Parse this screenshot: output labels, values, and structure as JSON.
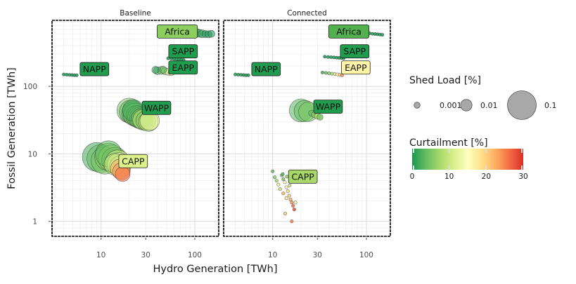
{
  "chart_data": {
    "type": "scatter",
    "x_label": "Hydro Generation [TWh]",
    "y_label": "Fossil Generation [TWh]",
    "x_scale": "log",
    "y_scale": "log",
    "xlim": [
      3,
      180
    ],
    "ylim": [
      0.6,
      950
    ],
    "x_ticks": [
      10,
      30,
      100
    ],
    "y_ticks": [
      1,
      10,
      100
    ],
    "grid": true,
    "size_legend": {
      "title": "Shed Load [%]",
      "entries": [
        {
          "label": "0.001",
          "value": 0.001
        },
        {
          "label": "0.01",
          "value": 0.01
        },
        {
          "label": "0.1",
          "value": 0.1
        }
      ]
    },
    "color_legend": {
      "title": "Curtailment [%]",
      "range": [
        0,
        30
      ],
      "ticks": [
        0,
        10,
        20,
        30
      ],
      "colormap": [
        "#1a9850",
        "#66bd63",
        "#a6d96a",
        "#d9ef8b",
        "#ffffbf",
        "#fee08b",
        "#fdae61",
        "#f46d43",
        "#d73027"
      ]
    },
    "panels": [
      {
        "title": "Baseline",
        "groups": [
          {
            "name": "Africa",
            "label_x": 65,
            "label_y": 650,
            "label_color": "#8ccf5f",
            "points": [
              [
                105,
                620,
                0.004,
                1
              ],
              [
                112,
                610,
                0.003,
                1
              ],
              [
                120,
                600,
                0.003,
                1
              ],
              [
                130,
                595,
                0.002,
                0
              ],
              [
                140,
                590,
                0.002,
                0
              ],
              [
                150,
                600,
                0.002,
                0
              ],
              [
                100,
                640,
                0.001,
                0
              ]
            ]
          },
          {
            "name": "SAPP",
            "label_x": 75,
            "label_y": 330,
            "label_color": "#1f9c4d",
            "points": [
              [
                52,
                260,
                0,
                0
              ],
              [
                56,
                258,
                0,
                0
              ],
              [
                60,
                255,
                0,
                0
              ],
              [
                64,
                252,
                0,
                0
              ],
              [
                68,
                250,
                0,
                0
              ],
              [
                72,
                248,
                0,
                0
              ],
              [
                76,
                245,
                0,
                0
              ]
            ]
          },
          {
            "name": "EAPP",
            "label_x": 75,
            "label_y": 190,
            "label_color": "#1f9c4d",
            "points": [
              [
                40,
                170,
                0.003,
                2
              ],
              [
                44,
                172,
                0.003,
                4
              ],
              [
                48,
                168,
                0.002,
                8
              ],
              [
                52,
                165,
                0.002,
                12
              ],
              [
                56,
                160,
                0.001,
                16
              ],
              [
                60,
                158,
                0,
                20
              ],
              [
                38,
                175,
                0.002,
                1
              ],
              [
                46,
                176,
                0.002,
                3
              ]
            ]
          },
          {
            "name": "NAPP",
            "label_x": 8.5,
            "label_y": 180,
            "label_color": "#1f9c4d",
            "points": [
              [
                4.0,
                150,
                0,
                0
              ],
              [
                4.3,
                149,
                0,
                0
              ],
              [
                4.6,
                148,
                0,
                0
              ],
              [
                4.9,
                147,
                0,
                0
              ],
              [
                5.2,
                146,
                0,
                0
              ],
              [
                5.5,
                146,
                0,
                0
              ]
            ]
          },
          {
            "name": "WAPP",
            "label_x": 39,
            "label_y": 48,
            "label_color": "#1f9c4d",
            "points": [
              [
                20,
                44,
                0.07,
                5
              ],
              [
                21,
                42,
                0.065,
                4
              ],
              [
                22,
                40,
                0.06,
                3
              ],
              [
                23,
                38,
                0.06,
                4
              ],
              [
                24,
                36,
                0.05,
                5
              ],
              [
                25,
                35,
                0.05,
                6
              ],
              [
                26,
                34,
                0.05,
                3
              ],
              [
                27,
                33,
                0.045,
                5
              ],
              [
                28,
                32,
                0.045,
                8
              ],
              [
                30,
                31,
                0.04,
                6
              ],
              [
                32,
                30,
                0.04,
                10
              ],
              [
                33,
                31,
                0.04,
                12
              ],
              [
                22,
                44,
                0.05,
                2
              ]
            ]
          },
          {
            "name": "CAPP",
            "label_x": 22,
            "label_y": 7.8,
            "label_color": "#ddf08a",
            "points": [
              [
                9,
                9,
                0.1,
                2
              ],
              [
                10,
                8.5,
                0.095,
                4
              ],
              [
                11,
                8,
                0.09,
                5
              ],
              [
                12,
                9,
                0.09,
                6
              ],
              [
                13,
                8.6,
                0.085,
                8
              ],
              [
                14,
                8,
                0.08,
                6
              ],
              [
                15,
                7.5,
                0.07,
                10
              ],
              [
                15.5,
                7,
                0.06,
                14
              ],
              [
                16,
                6.5,
                0.05,
                18
              ],
              [
                16,
                6,
                0.04,
                22
              ],
              [
                16.5,
                5.5,
                0.03,
                24
              ],
              [
                17,
                5,
                0.02,
                26
              ],
              [
                14,
                7,
                0.05,
                9
              ],
              [
                12,
                10,
                0.08,
                3
              ]
            ]
          }
        ]
      },
      {
        "title": "Connected",
        "groups": [
          {
            "name": "Africa",
            "label_x": 65,
            "label_y": 650,
            "label_color": "#52b04f",
            "points": [
              [
                100,
                620,
                0,
                0
              ],
              [
                108,
                610,
                0,
                0
              ],
              [
                116,
                600,
                0,
                0
              ],
              [
                124,
                595,
                0,
                0
              ],
              [
                132,
                590,
                0,
                0
              ],
              [
                140,
                585,
                0,
                0
              ],
              [
                148,
                580,
                0,
                0
              ]
            ]
          },
          {
            "name": "SAPP",
            "label_x": 75,
            "label_y": 330,
            "label_color": "#1f9c4d",
            "points": [
              [
                36,
                275,
                0,
                0
              ],
              [
                39,
                272,
                0,
                0
              ],
              [
                42,
                270,
                0,
                0
              ],
              [
                45,
                268,
                0,
                0
              ],
              [
                48,
                266,
                0,
                0
              ],
              [
                51,
                264,
                0,
                0
              ],
              [
                54,
                262,
                0,
                0
              ],
              [
                57,
                260,
                0,
                0
              ]
            ]
          },
          {
            "name": "EAPP",
            "label_x": 77,
            "label_y": 190,
            "label_color": "#fff3a6",
            "points": [
              [
                34,
                160,
                0,
                2
              ],
              [
                37,
                158,
                0,
                4
              ],
              [
                40,
                156,
                0,
                6
              ],
              [
                43,
                154,
                0,
                8
              ],
              [
                46,
                152,
                0,
                12
              ],
              [
                49,
                150,
                0,
                16
              ],
              [
                52,
                148,
                0,
                20
              ],
              [
                55,
                146,
                0,
                24
              ]
            ]
          },
          {
            "name": "NAPP",
            "label_x": 8.5,
            "label_y": 180,
            "label_color": "#1f9c4d",
            "points": [
              [
                4.0,
                150,
                0,
                0
              ],
              [
                4.3,
                149,
                0,
                0
              ],
              [
                4.6,
                148,
                0,
                0
              ],
              [
                4.9,
                147,
                0,
                0
              ],
              [
                5.2,
                146,
                0,
                0
              ],
              [
                5.5,
                146,
                0,
                0
              ]
            ]
          },
          {
            "name": "WAPP",
            "label_x": 39,
            "label_y": 50,
            "label_color": "#1f9c4d",
            "points": [
              [
                20,
                44,
                0.06,
                3
              ],
              [
                22,
                43,
                0.05,
                4
              ],
              [
                24,
                42,
                0.04,
                5
              ],
              [
                26,
                40,
                0.001,
                4
              ],
              [
                28,
                38,
                0.001,
                6
              ],
              [
                30,
                36,
                0.001,
                8
              ],
              [
                32,
                35,
                0.001,
                5
              ]
            ]
          },
          {
            "name": "CAPP",
            "label_x": 21,
            "label_y": 4.6,
            "label_color": "#a8d86a",
            "points": [
              [
                10,
                5.5,
                0,
                4
              ],
              [
                10.5,
                4.5,
                0,
                6
              ],
              [
                11,
                4,
                0,
                8
              ],
              [
                11.5,
                3.5,
                0,
                12
              ],
              [
                12,
                3,
                0,
                10
              ],
              [
                12.5,
                4.8,
                0,
                6
              ],
              [
                13,
                4.2,
                0,
                5
              ],
              [
                13.5,
                3.8,
                0,
                14
              ],
              [
                14,
                3.2,
                0,
                16
              ],
              [
                14.5,
                2.8,
                0,
                18
              ],
              [
                15,
                2.4,
                0,
                20
              ],
              [
                15.5,
                2.1,
                0,
                22
              ],
              [
                16,
                1.9,
                0,
                24
              ],
              [
                16.5,
                1.7,
                0,
                26
              ],
              [
                17,
                1.5,
                0,
                28
              ],
              [
                13,
                2.6,
                0,
                22
              ],
              [
                14,
                2.2,
                0,
                18
              ],
              [
                12.8,
                5,
                0,
                3
              ],
              [
                14.2,
                4.6,
                0,
                6
              ],
              [
                15.2,
                3.4,
                0,
                10
              ],
              [
                16,
                1.0,
                0,
                25
              ],
              [
                17.5,
                1.9,
                0,
                14
              ],
              [
                13.6,
                1.3,
                0,
                20
              ]
            ]
          }
        ]
      }
    ]
  }
}
